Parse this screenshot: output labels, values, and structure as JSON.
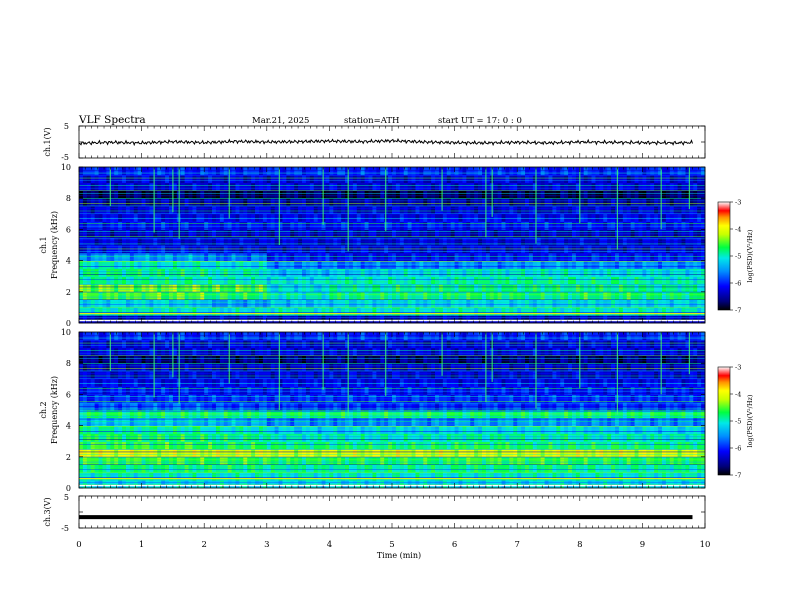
{
  "header": {
    "title": "VLF  Spectra",
    "date": "Mar.21, 2025",
    "station": "station=ATH",
    "start": "start  UT  =   17: 0  : 0"
  },
  "chart_data": [
    {
      "type": "line",
      "name": "ch1-waveform",
      "ylabel": "ch.1(V)",
      "ylim": [
        -5,
        5
      ],
      "yticks": [
        "5",
        "-5"
      ],
      "xlim": [
        0,
        10
      ],
      "x": [
        0,
        0.5,
        1,
        1.5,
        2,
        2.5,
        3,
        3.5,
        4,
        4.5,
        5,
        5.5,
        6,
        6.5,
        7,
        7.5,
        8,
        8.5,
        9,
        9.5,
        9.8
      ],
      "y": [
        -0.4,
        -0.1,
        -0.3,
        0.1,
        -0.2,
        0.2,
        0,
        0.1,
        0.3,
        0.1,
        0.4,
        0,
        -0.2,
        -0.3,
        -0.1,
        -0.3,
        0,
        -0.1,
        -0.2,
        -0.3,
        -0.2
      ]
    },
    {
      "type": "heatmap",
      "name": "ch1-spectrogram",
      "ylabel": "ch.1\nFrequency (kHz)",
      "yticks": [
        "0",
        "2",
        "4",
        "6",
        "8",
        "10"
      ],
      "ylim": [
        0,
        10
      ],
      "xlim": [
        0,
        10
      ],
      "colorbar": {
        "label": "log(PSD)(V²/Hz)",
        "ticks": [
          "-3",
          "-4",
          "-5",
          "-6",
          "-7"
        ],
        "range": [
          -7,
          -3
        ]
      },
      "rows_khz": [
        0.25,
        0.75,
        1.25,
        1.75,
        2.25,
        2.75,
        3.25,
        3.75,
        4.25,
        4.75,
        5.25,
        5.75,
        6.25,
        6.75,
        7.25,
        7.75,
        8.25,
        8.75,
        9.25,
        9.75
      ],
      "cols_min": [
        0,
        1,
        2,
        3,
        4,
        5,
        6,
        7,
        8,
        9
      ],
      "log_psd": [
        [
          -6.4,
          -6.4,
          -6.4,
          -6.4,
          -6.4,
          -6.4,
          -6.4,
          -6.4,
          -6.4,
          -6.4
        ],
        [
          -5.0,
          -5.0,
          -5.1,
          -5.0,
          -5.0,
          -5.0,
          -5.0,
          -5.0,
          -5.0,
          -5.0
        ],
        [
          -5.2,
          -5.2,
          -5.5,
          -5.3,
          -5.2,
          -5.2,
          -5.2,
          -5.2,
          -5.2,
          -5.2
        ],
        [
          -4.6,
          -4.5,
          -4.7,
          -5.0,
          -4.8,
          -4.8,
          -4.7,
          -4.8,
          -4.7,
          -4.8
        ],
        [
          -4.4,
          -4.4,
          -4.5,
          -5.1,
          -4.9,
          -4.8,
          -4.8,
          -4.8,
          -4.8,
          -4.9
        ],
        [
          -4.9,
          -4.9,
          -5.0,
          -5.1,
          -5.0,
          -5.0,
          -4.9,
          -4.9,
          -4.9,
          -5.0
        ],
        [
          -4.8,
          -4.8,
          -4.9,
          -5.3,
          -5.2,
          -5.1,
          -5.0,
          -5.0,
          -5.1,
          -5.1
        ],
        [
          -5.0,
          -5.0,
          -5.1,
          -5.6,
          -5.7,
          -5.6,
          -5.6,
          -5.5,
          -5.6,
          -5.6
        ],
        [
          -5.5,
          -5.5,
          -5.7,
          -6.1,
          -6.2,
          -6.2,
          -6.1,
          -6.1,
          -6.1,
          -6.1
        ],
        [
          -6.2,
          -6.2,
          -6.3,
          -6.3,
          -6.3,
          -6.3,
          -6.3,
          -6.3,
          -6.3,
          -6.3
        ],
        [
          -6.3,
          -6.3,
          -6.3,
          -6.3,
          -6.3,
          -6.3,
          -6.3,
          -6.3,
          -6.3,
          -6.3
        ],
        [
          -6.4,
          -6.4,
          -6.4,
          -6.4,
          -6.4,
          -6.4,
          -6.4,
          -6.4,
          -6.4,
          -6.4
        ],
        [
          -6.1,
          -6.1,
          -6.1,
          -6.1,
          -6.1,
          -6.1,
          -6.1,
          -6.1,
          -6.1,
          -6.1
        ],
        [
          -6.2,
          -6.2,
          -6.2,
          -6.2,
          -6.2,
          -6.2,
          -6.2,
          -6.2,
          -6.2,
          -6.2
        ],
        [
          -6.3,
          -6.3,
          -6.3,
          -6.3,
          -6.3,
          -6.3,
          -6.3,
          -6.3,
          -6.3,
          -6.3
        ],
        [
          -6.5,
          -6.5,
          -6.5,
          -6.5,
          -6.5,
          -6.5,
          -6.5,
          -6.5,
          -6.5,
          -6.5
        ],
        [
          -6.8,
          -6.8,
          -6.8,
          -6.8,
          -6.8,
          -6.8,
          -6.8,
          -6.8,
          -6.8,
          -6.8
        ],
        [
          -6.3,
          -6.3,
          -6.3,
          -6.3,
          -6.3,
          -6.3,
          -6.3,
          -6.3,
          -6.3,
          -6.3
        ],
        [
          -6.3,
          -6.3,
          -6.3,
          -6.3,
          -6.3,
          -6.3,
          -6.3,
          -6.3,
          -6.3,
          -6.3
        ],
        [
          -6.0,
          -6.0,
          -6.0,
          -6.0,
          -6.0,
          -6.0,
          -6.0,
          -6.0,
          -6.0,
          -6.0
        ]
      ],
      "spikes_min": [
        0.5,
        1.2,
        1.5,
        1.6,
        2.4,
        3.2,
        3.9,
        4.3,
        4.9,
        5.8,
        6.5,
        6.6,
        7.3,
        8.0,
        8.6,
        9.3,
        9.75
      ]
    },
    {
      "type": "heatmap",
      "name": "ch2-spectrogram",
      "ylabel": "ch.2\nFrequency (kHz)",
      "yticks": [
        "0",
        "2",
        "4",
        "6",
        "8",
        "10"
      ],
      "ylim": [
        0,
        10
      ],
      "xlim": [
        0,
        10
      ],
      "colorbar": {
        "label": "log(PSD)(V²/Hz)",
        "ticks": [
          "-3",
          "-4",
          "-5",
          "-6",
          "-7"
        ],
        "range": [
          -7,
          -3
        ]
      },
      "rows_khz": [
        0.25,
        0.75,
        1.25,
        1.75,
        2.25,
        2.75,
        3.25,
        3.75,
        4.25,
        4.75,
        5.25,
        5.75,
        6.25,
        6.75,
        7.25,
        7.75,
        8.25,
        8.75,
        9.25,
        9.75
      ],
      "cols_min": [
        0,
        1,
        2,
        3,
        4,
        5,
        6,
        7,
        8,
        9
      ],
      "log_psd": [
        [
          -5.2,
          -5.2,
          -5.2,
          -5.2,
          -5.2,
          -5.2,
          -5.2,
          -5.2,
          -5.2,
          -5.2
        ],
        [
          -5.0,
          -5.0,
          -5.0,
          -5.0,
          -5.0,
          -5.0,
          -5.0,
          -5.0,
          -5.0,
          -5.0
        ],
        [
          -4.8,
          -4.8,
          -4.8,
          -4.9,
          -4.9,
          -4.9,
          -4.8,
          -4.8,
          -4.9,
          -4.9
        ],
        [
          -4.6,
          -4.6,
          -4.6,
          -4.7,
          -4.7,
          -4.7,
          -4.6,
          -4.6,
          -4.7,
          -4.7
        ],
        [
          -4.0,
          -4.1,
          -4.1,
          -4.1,
          -4.1,
          -4.1,
          -4.1,
          -4.1,
          -4.1,
          -4.1
        ],
        [
          -4.6,
          -4.6,
          -4.7,
          -4.8,
          -4.8,
          -4.8,
          -4.7,
          -4.8,
          -4.8,
          -4.8
        ],
        [
          -4.7,
          -4.7,
          -4.8,
          -5.0,
          -5.0,
          -5.0,
          -4.9,
          -4.9,
          -5.0,
          -5.0
        ],
        [
          -4.9,
          -4.9,
          -5.0,
          -5.2,
          -5.2,
          -5.2,
          -5.1,
          -5.1,
          -5.2,
          -5.2
        ],
        [
          -5.3,
          -5.3,
          -5.4,
          -5.6,
          -5.6,
          -5.6,
          -5.5,
          -5.5,
          -5.6,
          -5.6
        ],
        [
          -4.8,
          -4.8,
          -4.8,
          -4.8,
          -4.8,
          -4.8,
          -4.8,
          -4.8,
          -4.8,
          -4.8
        ],
        [
          -5.8,
          -5.8,
          -5.9,
          -6.0,
          -6.0,
          -6.0,
          -6.0,
          -6.0,
          -6.0,
          -6.0
        ],
        [
          -6.0,
          -6.0,
          -6.0,
          -6.0,
          -6.0,
          -6.0,
          -6.0,
          -6.0,
          -6.0,
          -6.0
        ],
        [
          -6.1,
          -6.1,
          -6.1,
          -6.1,
          -6.1,
          -6.1,
          -6.1,
          -6.1,
          -6.1,
          -6.1
        ],
        [
          -6.2,
          -6.2,
          -6.2,
          -6.2,
          -6.2,
          -6.2,
          -6.2,
          -6.2,
          -6.2,
          -6.2
        ],
        [
          -6.3,
          -6.3,
          -6.3,
          -6.3,
          -6.3,
          -6.3,
          -6.3,
          -6.3,
          -6.3,
          -6.3
        ],
        [
          -6.4,
          -6.4,
          -6.4,
          -6.4,
          -6.4,
          -6.4,
          -6.4,
          -6.4,
          -6.4,
          -6.4
        ],
        [
          -6.7,
          -6.7,
          -6.7,
          -6.7,
          -6.7,
          -6.7,
          -6.7,
          -6.7,
          -6.7,
          -6.7
        ],
        [
          -6.3,
          -6.3,
          -6.3,
          -6.3,
          -6.3,
          -6.3,
          -6.3,
          -6.3,
          -6.3,
          -6.3
        ],
        [
          -6.3,
          -6.3,
          -6.3,
          -6.3,
          -6.3,
          -6.3,
          -6.3,
          -6.3,
          -6.3,
          -6.3
        ],
        [
          -6.0,
          -6.0,
          -6.0,
          -6.0,
          -6.0,
          -6.0,
          -6.0,
          -6.0,
          -6.0,
          -6.0
        ]
      ],
      "spikes_min": [
        0.5,
        1.2,
        1.5,
        1.6,
        2.4,
        3.2,
        3.9,
        4.3,
        4.9,
        5.8,
        6.5,
        6.6,
        7.3,
        8.0,
        8.6,
        9.3,
        9.75
      ]
    },
    {
      "type": "line",
      "name": "ch3-waveform",
      "ylabel": "ch.3(V)",
      "ylim": [
        -5,
        5
      ],
      "yticks": [
        "5",
        "-5"
      ],
      "xlim": [
        0,
        10
      ],
      "x": [
        0,
        9.8
      ],
      "y": [
        -1.6,
        -1.6
      ]
    }
  ],
  "x_axis": {
    "label": "Time  (min)",
    "ticks": [
      "0",
      "1",
      "2",
      "3",
      "4",
      "5",
      "6",
      "7",
      "8",
      "9",
      "10"
    ],
    "range": [
      0,
      10
    ]
  },
  "colors": {
    "axis": "#000000",
    "trace": "#000000"
  }
}
